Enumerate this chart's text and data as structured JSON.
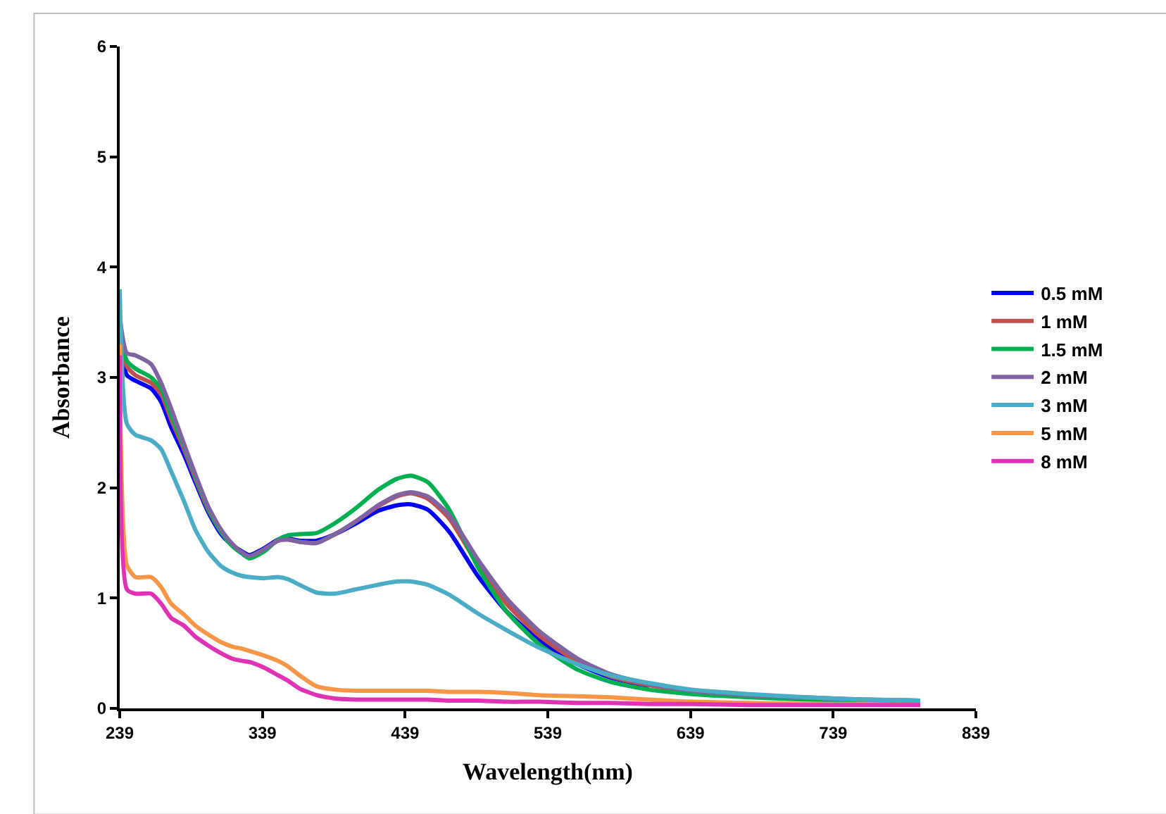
{
  "chart_data": {
    "type": "line",
    "xlabel": "Wavelength(nm)",
    "ylabel": "Absorbance",
    "xlim": [
      239,
      839
    ],
    "ylim": [
      0,
      6
    ],
    "xticks": [
      239,
      339,
      439,
      539,
      639,
      739,
      839
    ],
    "yticks": [
      0,
      1,
      2,
      3,
      4,
      5,
      6
    ],
    "legend": "right",
    "marker": "none",
    "line_style": "solid",
    "x": [
      239,
      244,
      250,
      261,
      268,
      275,
      284,
      292,
      301,
      310,
      318,
      325,
      330,
      340,
      350,
      357,
      365,
      377,
      390,
      405,
      420,
      433,
      443,
      455,
      470,
      490,
      510,
      533,
      560,
      583,
      610,
      640,
      680,
      720,
      760,
      800
    ],
    "series": [
      {
        "name": "0.5 mM",
        "color": "#0000ff",
        "values": [
          3.35,
          3.02,
          2.97,
          2.9,
          2.78,
          2.55,
          2.3,
          2.05,
          1.78,
          1.58,
          1.48,
          1.42,
          1.39,
          1.45,
          1.53,
          1.54,
          1.52,
          1.52,
          1.58,
          1.68,
          1.79,
          1.84,
          1.85,
          1.8,
          1.6,
          1.2,
          0.88,
          0.62,
          0.4,
          0.28,
          0.2,
          null,
          null,
          null,
          null,
          null
        ]
      },
      {
        "name": "1 mM",
        "color": "#c0504d",
        "values": [
          3.4,
          3.1,
          3.02,
          2.95,
          2.85,
          2.62,
          2.35,
          2.08,
          1.8,
          1.6,
          1.48,
          1.41,
          1.37,
          1.44,
          1.52,
          1.53,
          1.51,
          1.5,
          1.58,
          1.7,
          1.83,
          1.92,
          1.95,
          1.9,
          1.72,
          1.3,
          0.95,
          0.66,
          0.42,
          0.29,
          0.21,
          0.15,
          0.11,
          0.09,
          0.08,
          0.07
        ]
      },
      {
        "name": "1.5 mM",
        "color": "#00b050",
        "values": [
          3.45,
          3.15,
          3.08,
          3.0,
          2.9,
          2.66,
          2.38,
          2.1,
          1.81,
          1.6,
          1.47,
          1.4,
          1.36,
          1.42,
          1.53,
          1.57,
          1.58,
          1.59,
          1.68,
          1.82,
          1.98,
          2.08,
          2.11,
          2.05,
          1.8,
          1.28,
          0.88,
          0.58,
          0.35,
          0.24,
          0.17,
          0.13,
          0.1,
          0.08,
          0.07,
          0.06
        ]
      },
      {
        "name": "2 mM",
        "color": "#8064a2",
        "values": [
          3.55,
          3.22,
          3.2,
          3.12,
          2.95,
          2.72,
          2.4,
          2.12,
          1.83,
          1.62,
          1.49,
          1.41,
          1.38,
          1.44,
          1.52,
          1.53,
          1.51,
          1.5,
          1.58,
          1.7,
          1.84,
          1.93,
          1.96,
          1.92,
          1.75,
          1.35,
          1.0,
          0.7,
          0.45,
          0.31,
          0.22,
          0.16,
          0.12,
          0.1,
          0.08,
          0.07
        ]
      },
      {
        "name": "3 mM",
        "color": "#4bacc6",
        "values": [
          3.8,
          2.58,
          2.48,
          2.43,
          2.35,
          2.15,
          1.88,
          1.62,
          1.42,
          1.29,
          1.23,
          1.2,
          1.19,
          1.18,
          1.19,
          1.17,
          1.12,
          1.05,
          1.04,
          1.08,
          1.12,
          1.15,
          1.15,
          1.12,
          1.03,
          0.86,
          0.71,
          0.55,
          0.4,
          0.3,
          0.23,
          0.17,
          0.13,
          0.1,
          0.08,
          0.07
        ]
      },
      {
        "name": "5 mM",
        "color": "#f79646",
        "values": [
          3.3,
          1.3,
          1.19,
          1.19,
          1.1,
          0.95,
          0.85,
          0.75,
          0.67,
          0.6,
          0.56,
          0.54,
          0.52,
          0.48,
          0.43,
          0.38,
          0.3,
          0.2,
          0.17,
          0.16,
          0.16,
          0.16,
          0.16,
          0.16,
          0.15,
          0.15,
          0.14,
          0.12,
          0.11,
          0.1,
          0.08,
          0.06,
          0.05,
          0.04,
          0.04,
          0.03
        ]
      },
      {
        "name": "8 mM",
        "color": "#e032b4",
        "values": [
          3.2,
          1.08,
          1.04,
          1.04,
          0.95,
          0.82,
          0.75,
          0.65,
          0.57,
          0.5,
          0.45,
          0.43,
          0.42,
          0.37,
          0.3,
          0.25,
          0.18,
          0.12,
          0.09,
          0.08,
          0.08,
          0.08,
          0.08,
          0.08,
          0.07,
          0.07,
          0.06,
          0.06,
          0.05,
          0.05,
          0.04,
          0.04,
          0.03,
          0.03,
          0.03,
          0.03
        ]
      }
    ]
  }
}
